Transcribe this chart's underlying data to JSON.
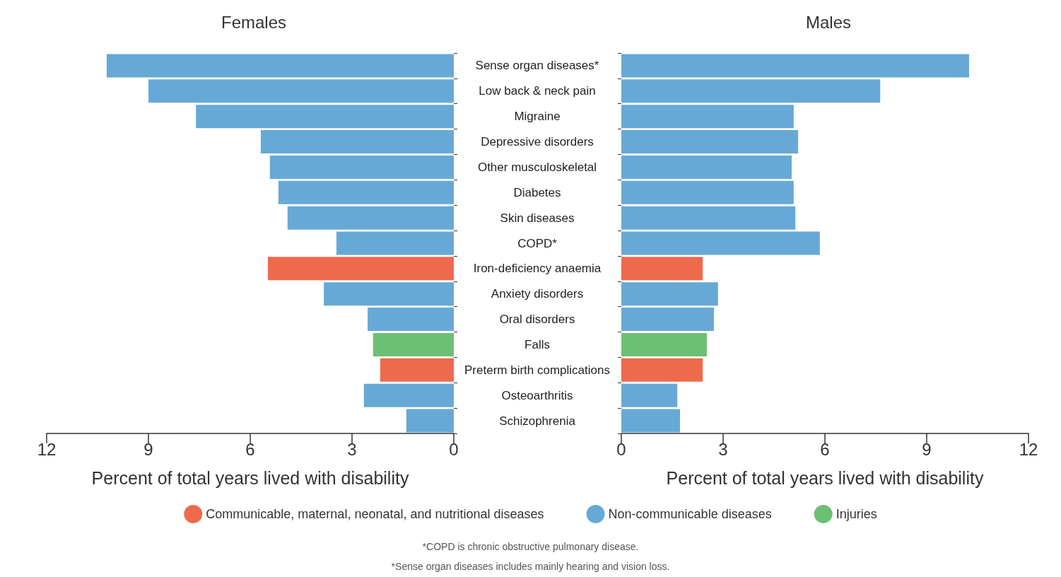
{
  "chart_data": [
    {
      "type": "bar",
      "title": "Females",
      "orientation": "horizontal",
      "stacked": true,
      "xlabel": "Percent of total years lived with disability",
      "categories": [
        "Sense organ diseases*",
        "Low back & neck pain",
        "Migraine",
        "Depressive disorders",
        "Other musculoskeletal",
        "Diabetes",
        "Skin diseases",
        "COPD*",
        "Iron-deficiency anaemia",
        "Anxiety disorders",
        "Oral disorders",
        "Falls",
        "Preterm birth complications",
        "Osteoarthritis",
        "Schizophrenia"
      ],
      "series": [
        {
          "name": "Communicable, maternal, neonatal, and nutritional diseases",
          "color": "#ee6a4d",
          "values": [
            null,
            null,
            null,
            null,
            null,
            null,
            null,
            null,
            5.48,
            null,
            null,
            null,
            2.17,
            null,
            null
          ]
        },
        {
          "name": "Non-communicable diseases",
          "color": "#67a9d6",
          "values": [
            10.23,
            9.0,
            7.6,
            5.69,
            5.42,
            5.17,
            4.9,
            3.46,
            null,
            3.83,
            2.54,
            null,
            null,
            2.65,
            1.4
          ]
        },
        {
          "name": "Injuries",
          "color": "#6dc073",
          "values": [
            null,
            null,
            null,
            null,
            null,
            null,
            null,
            null,
            null,
            null,
            null,
            2.38,
            null,
            null,
            null
          ]
        }
      ],
      "xlim": [
        12,
        0
      ],
      "xticks": [
        0,
        3,
        6,
        9,
        12
      ],
      "legend": "bottom",
      "annotations": [
        "*COPD is chronic obstructive pulmonary disease.",
        "*Sense organ diseases includes mainly hearing and vision loss."
      ]
    },
    {
      "type": "bar",
      "title": "Males",
      "orientation": "horizontal",
      "stacked": true,
      "xlabel": "Percent of total years lived with disability",
      "tick_labels": "x",
      "categories": [
        null,
        null,
        null,
        null,
        null,
        null,
        null,
        null,
        null,
        null,
        null,
        null,
        null,
        null,
        null
      ],
      "series": [
        {
          "color": "#ee6a4d",
          "values": [
            null,
            null,
            null,
            null,
            null,
            null,
            null,
            null,
            2.4,
            null,
            null,
            null,
            2.4,
            null,
            null
          ]
        },
        {
          "color": "#67a9d6",
          "values": [
            10.25,
            7.63,
            5.08,
            5.21,
            5.02,
            5.08,
            5.13,
            5.85,
            null,
            2.85,
            2.73,
            null,
            null,
            1.65,
            1.73
          ]
        },
        {
          "color": "#6dc073",
          "values": [
            null,
            null,
            null,
            null,
            null,
            null,
            null,
            null,
            null,
            null,
            null,
            2.52,
            null,
            null,
            null
          ]
        }
      ],
      "xlim": [
        0,
        12
      ],
      "xticks": [
        0,
        3,
        6,
        9,
        12
      ]
    }
  ]
}
